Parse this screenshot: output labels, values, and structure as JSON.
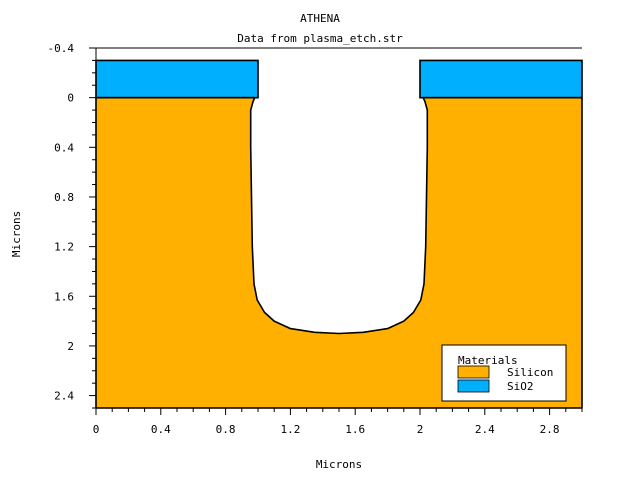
{
  "chart_data": {
    "type": "area",
    "title": "ATHENA",
    "subtitle": "Data from plasma_etch.str",
    "xlabel": "Microns",
    "ylabel": "Microns",
    "xlim": [
      0,
      3.0
    ],
    "ylim": [
      -0.4,
      2.5
    ],
    "y_inverted": true,
    "xticks": [
      "0",
      "0.4",
      "0.8",
      "1.2",
      "1.6",
      "2",
      "2.4",
      "2.8"
    ],
    "yticks": [
      "-0.4",
      "0",
      "0.4",
      "0.8",
      "1.2",
      "1.6",
      "2",
      "2.4"
    ],
    "grid": false,
    "legend": {
      "title": "Materials",
      "placement": "bottom-right",
      "entries": [
        {
          "name": "Silicon",
          "color": "#FFB000"
        },
        {
          "name": "SiO2",
          "color": "#00B0FF"
        }
      ]
    },
    "regions": [
      {
        "material": "SiO2",
        "color": "#00B0FF",
        "polygons": [
          [
            [
              0,
              -0.3
            ],
            [
              1.0,
              -0.3
            ],
            [
              1.0,
              0
            ],
            [
              0,
              0
            ]
          ],
          [
            [
              2.0,
              -0.3
            ],
            [
              3.0,
              -0.3
            ],
            [
              3.0,
              0
            ],
            [
              2.0,
              0
            ]
          ]
        ]
      },
      {
        "material": "Silicon",
        "color": "#FFB000",
        "outline": [
          [
            0,
            0
          ],
          [
            0.98,
            0
          ],
          [
            0.97,
            0.03
          ],
          [
            0.955,
            0.1
          ],
          [
            0.955,
            0.4
          ],
          [
            0.96,
            0.8
          ],
          [
            0.965,
            1.2
          ],
          [
            0.975,
            1.5
          ],
          [
            0.995,
            1.63
          ],
          [
            1.04,
            1.73
          ],
          [
            1.1,
            1.8
          ],
          [
            1.2,
            1.86
          ],
          [
            1.35,
            1.89
          ],
          [
            1.5,
            1.9
          ],
          [
            1.65,
            1.89
          ],
          [
            1.8,
            1.86
          ],
          [
            1.9,
            1.8
          ],
          [
            1.96,
            1.73
          ],
          [
            2.005,
            1.63
          ],
          [
            2.025,
            1.5
          ],
          [
            2.035,
            1.2
          ],
          [
            2.04,
            0.8
          ],
          [
            2.045,
            0.4
          ],
          [
            2.045,
            0.1
          ],
          [
            2.03,
            0.03
          ],
          [
            2.02,
            0
          ],
          [
            3.0,
            0
          ],
          [
            3.0,
            2.5
          ],
          [
            0,
            2.5
          ]
        ]
      }
    ]
  }
}
